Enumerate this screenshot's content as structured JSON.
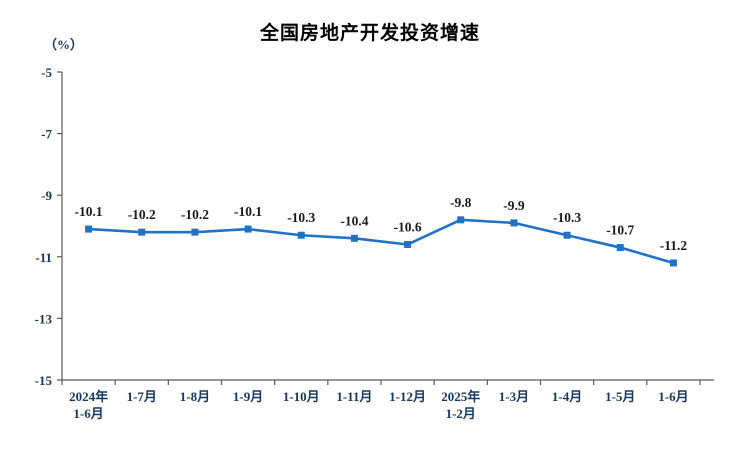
{
  "chart_data": {
    "type": "line",
    "title": "全国房地产开发投资增速",
    "unit_label": "（%）",
    "categories": [
      "2024年\n1-6月",
      "1-7月",
      "1-8月",
      "1-9月",
      "1-10月",
      "1-11月",
      "1-12月",
      "2025年\n1-2月",
      "1-3月",
      "1-4月",
      "1-5月",
      "1-6月"
    ],
    "values": [
      -10.1,
      -10.2,
      -10.2,
      -10.1,
      -10.3,
      -10.4,
      -10.6,
      -9.8,
      -9.9,
      -10.3,
      -10.7,
      -11.2
    ],
    "data_labels": [
      "-10.1",
      "-10.2",
      "-10.2",
      "-10.1",
      "-10.3",
      "-10.4",
      "-10.6",
      "-9.8",
      "-9.9",
      "-10.3",
      "-10.7",
      "-11.2"
    ],
    "ylim": [
      -15,
      -5
    ],
    "yticks": [
      -5,
      -7,
      -9,
      -11,
      -13,
      -15
    ],
    "xlabel": "",
    "ylabel": "（%）",
    "grid": false,
    "legend": "none",
    "marker": "square",
    "colors": {
      "line": "#2271C3",
      "marker": "#2271C3",
      "axis": "#595959",
      "tick_text": "#17375D",
      "data_label_text": "#1a1a1a",
      "title_text": "#000000"
    }
  }
}
